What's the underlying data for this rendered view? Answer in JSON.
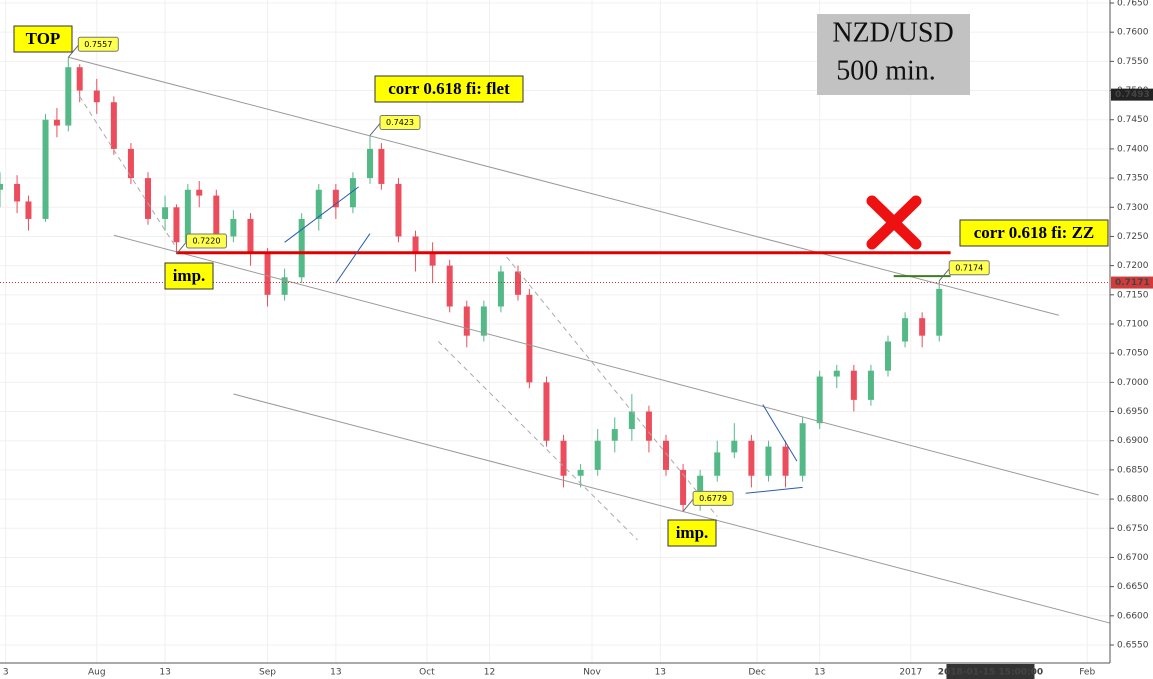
{
  "chart_data": {
    "type": "candlestick",
    "title": "NZD/USD",
    "subtitle": "500 min.",
    "up_color": "#53b987",
    "down_color": "#eb4d5c",
    "xlim": [
      0,
      195
    ],
    "xticks": [
      {
        "value": 1,
        "label": "3"
      },
      {
        "value": 17,
        "label": "Aug"
      },
      {
        "value": 29,
        "label": "13"
      },
      {
        "value": 47,
        "label": "Sep"
      },
      {
        "value": 59,
        "label": "13"
      },
      {
        "value": 75,
        "label": "Oct"
      },
      {
        "value": 86,
        "label": "12"
      },
      {
        "value": 104,
        "label": "Nov"
      },
      {
        "value": 116,
        "label": "13"
      },
      {
        "value": 133,
        "label": "Dec"
      },
      {
        "value": 144,
        "label": "13"
      },
      {
        "value": 160,
        "label": "2017"
      },
      {
        "value": 191,
        "label": "Feb"
      }
    ],
    "crosshair_date": {
      "value": 174,
      "label": "2018-01-15 15:00:00"
    },
    "ylim": [
      0.655,
      0.765
    ],
    "yticks": [
      {
        "value": 0.655,
        "label": "0.6550"
      },
      {
        "value": 0.66,
        "label": "0.6600"
      },
      {
        "value": 0.665,
        "label": "0.6650"
      },
      {
        "value": 0.67,
        "label": "0.6700"
      },
      {
        "value": 0.675,
        "label": "0.6750"
      },
      {
        "value": 0.68,
        "label": "0.6800"
      },
      {
        "value": 0.685,
        "label": "0.6850"
      },
      {
        "value": 0.69,
        "label": "0.6900"
      },
      {
        "value": 0.695,
        "label": "0.6950"
      },
      {
        "value": 0.7,
        "label": "0.7000"
      },
      {
        "value": 0.705,
        "label": "0.7050"
      },
      {
        "value": 0.71,
        "label": "0.7100"
      },
      {
        "value": 0.715,
        "label": "0.7150"
      },
      {
        "value": 0.72,
        "label": "0.7200"
      },
      {
        "value": 0.725,
        "label": "0.7250"
      },
      {
        "value": 0.73,
        "label": "0.7300"
      },
      {
        "value": 0.735,
        "label": "0.7350"
      },
      {
        "value": 0.74,
        "label": "0.7400"
      },
      {
        "value": 0.745,
        "label": "0.7450"
      },
      {
        "value": 0.75,
        "label": "0.7500"
      },
      {
        "value": 0.755,
        "label": "0.7550"
      },
      {
        "value": 0.76,
        "label": "0.7600"
      },
      {
        "value": 0.765,
        "label": "0.7650"
      }
    ],
    "grid": true,
    "x": [
      0,
      3,
      5,
      8,
      10,
      12,
      14,
      17,
      20,
      23,
      26,
      29,
      31,
      33,
      35,
      38,
      41,
      44,
      47,
      50,
      53,
      56,
      59,
      62,
      65,
      67,
      70,
      73,
      76,
      79,
      82,
      85,
      88,
      91,
      93,
      96,
      99,
      102,
      105,
      108,
      111,
      114,
      117,
      120,
      123,
      126,
      129,
      132,
      135,
      138,
      141,
      144,
      147,
      150,
      153,
      156,
      159,
      162,
      165
    ],
    "ohlc": [
      [
        0.733,
        0.736,
        0.73,
        0.734
      ],
      [
        0.734,
        0.7355,
        0.729,
        0.731
      ],
      [
        0.731,
        0.732,
        0.726,
        0.728
      ],
      [
        0.728,
        0.746,
        0.7275,
        0.745
      ],
      [
        0.745,
        0.747,
        0.742,
        0.744
      ],
      [
        0.744,
        0.7557,
        0.743,
        0.754
      ],
      [
        0.754,
        0.7545,
        0.748,
        0.75
      ],
      [
        0.75,
        0.752,
        0.746,
        0.748
      ],
      [
        0.748,
        0.749,
        0.739,
        0.74
      ],
      [
        0.74,
        0.741,
        0.734,
        0.735
      ],
      [
        0.735,
        0.736,
        0.727,
        0.728
      ],
      [
        0.728,
        0.732,
        0.726,
        0.73
      ],
      [
        0.73,
        0.7305,
        0.722,
        0.724
      ],
      [
        0.724,
        0.734,
        0.723,
        0.733
      ],
      [
        0.733,
        0.7345,
        0.73,
        0.732
      ],
      [
        0.732,
        0.733,
        0.724,
        0.725
      ],
      [
        0.725,
        0.7295,
        0.724,
        0.728
      ],
      [
        0.728,
        0.729,
        0.72,
        0.722
      ],
      [
        0.722,
        0.723,
        0.713,
        0.715
      ],
      [
        0.715,
        0.7195,
        0.714,
        0.718
      ],
      [
        0.718,
        0.729,
        0.717,
        0.728
      ],
      [
        0.728,
        0.734,
        0.726,
        0.733
      ],
      [
        0.733,
        0.734,
        0.728,
        0.73
      ],
      [
        0.73,
        0.736,
        0.729,
        0.735
      ],
      [
        0.735,
        0.7423,
        0.734,
        0.74
      ],
      [
        0.74,
        0.741,
        0.733,
        0.734
      ],
      [
        0.734,
        0.735,
        0.724,
        0.725
      ],
      [
        0.725,
        0.726,
        0.719,
        0.722
      ],
      [
        0.722,
        0.724,
        0.717,
        0.72
      ],
      [
        0.72,
        0.721,
        0.712,
        0.713
      ],
      [
        0.713,
        0.714,
        0.706,
        0.708
      ],
      [
        0.708,
        0.714,
        0.707,
        0.713
      ],
      [
        0.713,
        0.72,
        0.712,
        0.719
      ],
      [
        0.719,
        0.72,
        0.714,
        0.715
      ],
      [
        0.715,
        0.716,
        0.699,
        0.7
      ],
      [
        0.7,
        0.701,
        0.689,
        0.69
      ],
      [
        0.69,
        0.691,
        0.682,
        0.684
      ],
      [
        0.684,
        0.686,
        0.682,
        0.685
      ],
      [
        0.685,
        0.692,
        0.684,
        0.69
      ],
      [
        0.69,
        0.694,
        0.688,
        0.692
      ],
      [
        0.692,
        0.698,
        0.69,
        0.695
      ],
      [
        0.695,
        0.696,
        0.688,
        0.69
      ],
      [
        0.69,
        0.691,
        0.684,
        0.685
      ],
      [
        0.685,
        0.686,
        0.6779,
        0.679
      ],
      [
        0.679,
        0.685,
        0.678,
        0.684
      ],
      [
        0.684,
        0.69,
        0.683,
        0.688
      ],
      [
        0.688,
        0.693,
        0.687,
        0.69
      ],
      [
        0.69,
        0.691,
        0.682,
        0.684
      ],
      [
        0.684,
        0.69,
        0.683,
        0.689
      ],
      [
        0.689,
        0.69,
        0.682,
        0.684
      ],
      [
        0.684,
        0.694,
        0.683,
        0.693
      ],
      [
        0.693,
        0.702,
        0.692,
        0.701
      ],
      [
        0.701,
        0.703,
        0.699,
        0.702
      ],
      [
        0.702,
        0.703,
        0.695,
        0.697
      ],
      [
        0.697,
        0.703,
        0.696,
        0.702
      ],
      [
        0.702,
        0.708,
        0.701,
        0.707
      ],
      [
        0.707,
        0.712,
        0.706,
        0.711
      ],
      [
        0.711,
        0.712,
        0.706,
        0.708
      ],
      [
        0.708,
        0.7174,
        0.707,
        0.716
      ]
    ],
    "trend_lines": [
      {
        "color": "#999999",
        "width": 1,
        "x": [
          12,
          186
        ],
        "y": [
          0.7557,
          0.7115
        ]
      },
      {
        "color": "#999999",
        "width": 1,
        "x": [
          20,
          193
        ],
        "y": [
          0.7252,
          0.6807
        ]
      },
      {
        "color": "#999999",
        "width": 1,
        "x": [
          41,
          196
        ],
        "y": [
          0.698,
          0.6585
        ]
      },
      {
        "color": "#aaaaaa",
        "width": 1,
        "dashed": true,
        "x": [
          14,
          31
        ],
        "y": [
          0.749,
          0.723
        ]
      },
      {
        "color": "#aaaaaa",
        "width": 1,
        "dashed": true,
        "x": [
          77,
          112
        ],
        "y": [
          0.707,
          0.673
        ]
      },
      {
        "color": "#aaaaaa",
        "width": 1,
        "dashed": true,
        "x": [
          89,
          126
        ],
        "y": [
          0.7215,
          0.677
        ]
      },
      {
        "color": "#e00000",
        "width": 3,
        "x": [
          31,
          167
        ],
        "y": [
          0.7222,
          0.7222
        ]
      },
      {
        "color": "#3a7d22",
        "width": 2,
        "x": [
          157,
          167
        ],
        "y": [
          0.7182,
          0.7182
        ]
      },
      {
        "color": "#2a5caa",
        "width": 1,
        "x": [
          50,
          63
        ],
        "y": [
          0.724,
          0.7335
        ]
      },
      {
        "color": "#2a5caa",
        "width": 1,
        "x": [
          59,
          65
        ],
        "y": [
          0.717,
          0.7255
        ]
      },
      {
        "color": "#2a5caa",
        "width": 1,
        "x": [
          134,
          140
        ],
        "y": [
          0.6962,
          0.6865
        ]
      },
      {
        "color": "#2a5caa",
        "width": 1,
        "x": [
          131,
          141
        ],
        "y": [
          0.681,
          0.682
        ]
      }
    ],
    "callouts": [
      {
        "x": 12,
        "value": 0.7557,
        "label": "0.7557"
      },
      {
        "x": 65,
        "value": 0.7423,
        "label": "0.7423"
      },
      {
        "x": 31,
        "value": 0.722,
        "label": "0.7220"
      },
      {
        "x": 120,
        "value": 0.6779,
        "label": "0.6779"
      },
      {
        "x": 165,
        "value": 0.7174,
        "label": "0.7174"
      }
    ],
    "annotations": [
      "TOP",
      "corr 0.618 fi: flet",
      "imp.",
      "imp.",
      "corr 0.618 fi: ZZ"
    ],
    "last_price": {
      "value": 0.7171,
      "label": "0.7171"
    },
    "marker_price": {
      "value": 0.7493,
      "label": "0.7493"
    }
  }
}
